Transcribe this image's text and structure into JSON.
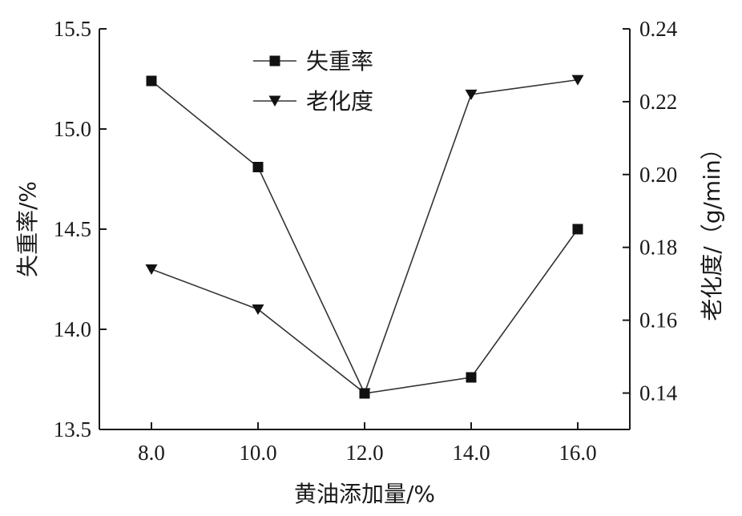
{
  "chart_data": {
    "type": "line",
    "x": [
      8.0,
      10.0,
      12.0,
      14.0,
      16.0
    ],
    "x_ticks": [
      "8.0",
      "10.0",
      "12.0",
      "14.0",
      "16.0"
    ],
    "xlabel": "黄油添加量/%",
    "ylabel_left": "失重率/%",
    "ylabel_right": "老化度/（g/min）",
    "ylim_left": [
      13.5,
      15.5
    ],
    "ylim_right": [
      0.13,
      0.24
    ],
    "yticks_left": [
      "13.5",
      "14.0",
      "14.5",
      "15.0",
      "15.5"
    ],
    "yticks_right": [
      "0.14",
      "0.16",
      "0.18",
      "0.20",
      "0.22",
      "0.24"
    ],
    "grid": false,
    "legend_position": "top-center",
    "series": [
      {
        "name": "失重率",
        "axis": "left",
        "marker": "square",
        "values": [
          15.24,
          14.81,
          13.68,
          13.76,
          14.5
        ]
      },
      {
        "name": "老化度",
        "axis": "right",
        "marker": "triangle-down",
        "values": [
          0.174,
          0.163,
          0.14,
          0.222,
          0.226
        ]
      }
    ],
    "line_color": "#333333",
    "axis_color": "#1a1a1a"
  }
}
